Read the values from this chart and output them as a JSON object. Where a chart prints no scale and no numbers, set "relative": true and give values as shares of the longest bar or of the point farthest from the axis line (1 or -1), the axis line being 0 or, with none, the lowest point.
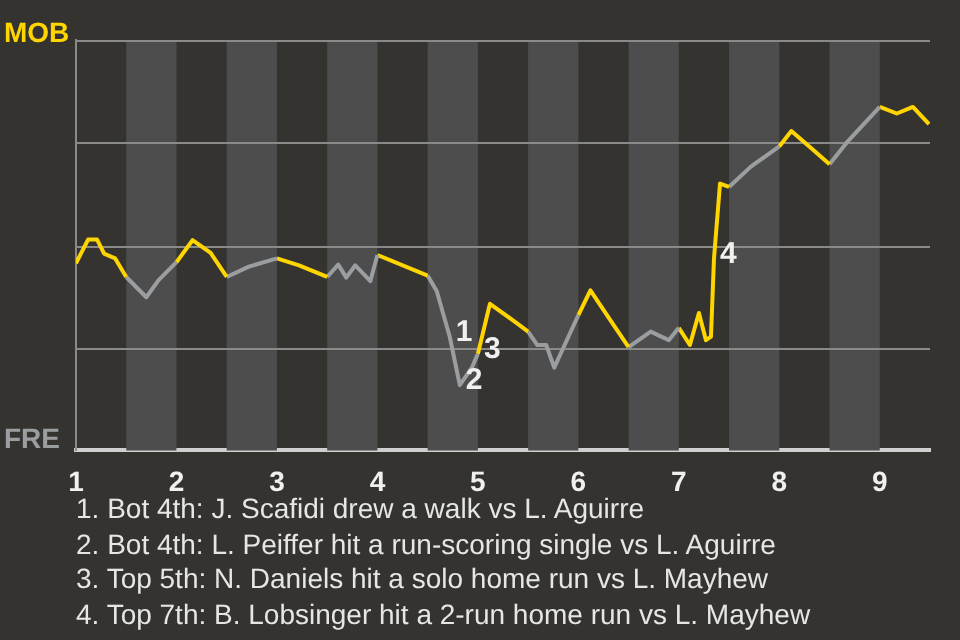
{
  "chart_data": {
    "type": "line",
    "relative": true,
    "series": [
      {
        "color": "#ffd500",
        "x": [
          1,
          1.12,
          1.21,
          1.28,
          1.39,
          1.5
        ],
        "values": [
          0.545,
          0.614,
          0.614,
          0.573,
          0.559,
          0.505
        ]
      },
      {
        "color": "#9a9ea0",
        "x": [
          1.5,
          1.7,
          1.82,
          2
        ],
        "values": [
          0.505,
          0.446,
          0.495,
          0.548
        ]
      },
      {
        "color": "#ffd500",
        "x": [
          2,
          2.16,
          2.34,
          2.5
        ],
        "values": [
          0.548,
          0.612,
          0.575,
          0.505
        ]
      },
      {
        "color": "#9a9ea0",
        "x": [
          2.5,
          2.72,
          3
        ],
        "values": [
          0.505,
          0.535,
          0.559
        ]
      },
      {
        "color": "#ffd500",
        "x": [
          3,
          3.22,
          3.5
        ],
        "values": [
          0.559,
          0.539,
          0.505
        ]
      },
      {
        "color": "#9a9ea0",
        "x": [
          3.5,
          3.61,
          3.69,
          3.78,
          3.93,
          4
        ],
        "values": [
          0.505,
          0.541,
          0.503,
          0.539,
          0.493,
          0.569
        ]
      },
      {
        "color": "#ffd500",
        "x": [
          4,
          4.5
        ],
        "values": [
          0.569,
          0.509
        ]
      },
      {
        "color": "#9a9ea0",
        "x": [
          4.5,
          4.59,
          4.72,
          4.82,
          4.94,
          5
        ],
        "values": [
          0.509,
          0.464,
          0.331,
          0.19,
          0.241,
          0.281
        ]
      },
      {
        "color": "#ffd500",
        "x": [
          5,
          5.12,
          5.39,
          5.5
        ],
        "values": [
          0.281,
          0.427,
          0.37,
          0.346
        ]
      },
      {
        "color": "#9a9ea0",
        "x": [
          5.5,
          5.59,
          5.68,
          5.76,
          6
        ],
        "values": [
          0.346,
          0.307,
          0.307,
          0.241,
          0.394
        ]
      },
      {
        "color": "#ffd500",
        "x": [
          6,
          6.12,
          6.36,
          6.5
        ],
        "values": [
          0.394,
          0.466,
          0.361,
          0.301
        ]
      },
      {
        "color": "#9a9ea0",
        "x": [
          6.5,
          6.72,
          6.9,
          7
        ],
        "values": [
          0.301,
          0.346,
          0.321,
          0.357
        ]
      },
      {
        "color": "#ffd500",
        "x": [
          7,
          7.11,
          7.2,
          7.27,
          7.32,
          7.35,
          7.41,
          7.5
        ],
        "values": [
          0.357,
          0.307,
          0.4,
          0.321,
          0.331,
          0.559,
          0.777,
          0.767
        ]
      },
      {
        "color": "#9a9ea0",
        "x": [
          7.5,
          7.72,
          8
        ],
        "values": [
          0.767,
          0.827,
          0.885
        ]
      },
      {
        "color": "#ffd500",
        "x": [
          8,
          8.12,
          8.35,
          8.5
        ],
        "values": [
          0.885,
          0.93,
          0.872,
          0.833
        ]
      },
      {
        "color": "#9a9ea0",
        "x": [
          8.5,
          8.67,
          9
        ],
        "values": [
          0.833,
          0.896,
          1
        ]
      },
      {
        "color": "#ffd500",
        "x": [
          9,
          9.17,
          9.33,
          9.49
        ],
        "values": [
          1,
          0.981,
          1,
          0.95
        ]
      }
    ],
    "xlim": [
      1,
      9.5
    ],
    "xticks": [
      1,
      2,
      3,
      4,
      5,
      6,
      7,
      8,
      9
    ],
    "tick_labels": "x",
    "legend": false,
    "marker": "none",
    "line_style": "solid",
    "ref_lines": [
      {
        "axis": "y",
        "value": 0.299,
        "color": "#8a8a8a"
      },
      {
        "axis": "y",
        "value": 0.597,
        "color": "#8a8a8a"
      },
      {
        "axis": "y",
        "value": 0.896,
        "color": "#8a8a8a"
      },
      {
        "axis": "y",
        "value": 1.195,
        "color": "#8a8a8a"
      }
    ],
    "bands": [
      {
        "axis": "x",
        "from": 1.5,
        "to": 2,
        "color": "#4d4d4d"
      },
      {
        "axis": "x",
        "from": 2.5,
        "to": 3,
        "color": "#4d4d4d"
      },
      {
        "axis": "x",
        "from": 3.5,
        "to": 4,
        "color": "#4d4d4d"
      },
      {
        "axis": "x",
        "from": 4.5,
        "to": 5,
        "color": "#4d4d4d"
      },
      {
        "axis": "x",
        "from": 5.5,
        "to": 6,
        "color": "#4d4d4d"
      },
      {
        "axis": "x",
        "from": 6.5,
        "to": 7,
        "color": "#4d4d4d"
      },
      {
        "axis": "x",
        "from": 7.5,
        "to": 8,
        "color": "#4d4d4d"
      },
      {
        "axis": "x",
        "from": 8.5,
        "to": 9,
        "color": "#4d4d4d"
      }
    ],
    "annotations": [
      {
        "text": "1",
        "x": 4.72,
        "y": 0.331
      },
      {
        "text": "2",
        "x": 4.82,
        "y": 0.19
      },
      {
        "text": "3",
        "x": 5,
        "y": 0.281
      },
      {
        "text": "4",
        "x": 7.35,
        "y": 0.559
      },
      "MOB",
      "FRE",
      "1. Bot 4th: J. Scafidi drew a walk vs L. Aguirre",
      "2. Bot 4th: L. Peiffer hit a run-scoring single vs L. Aguirre",
      "3. Top 5th: N. Daniels hit a solo home run vs L. Mayhew",
      "4. Top 7th: B. Lobsinger hit a 2-run home run vs L. Mayhew"
    ]
  }
}
